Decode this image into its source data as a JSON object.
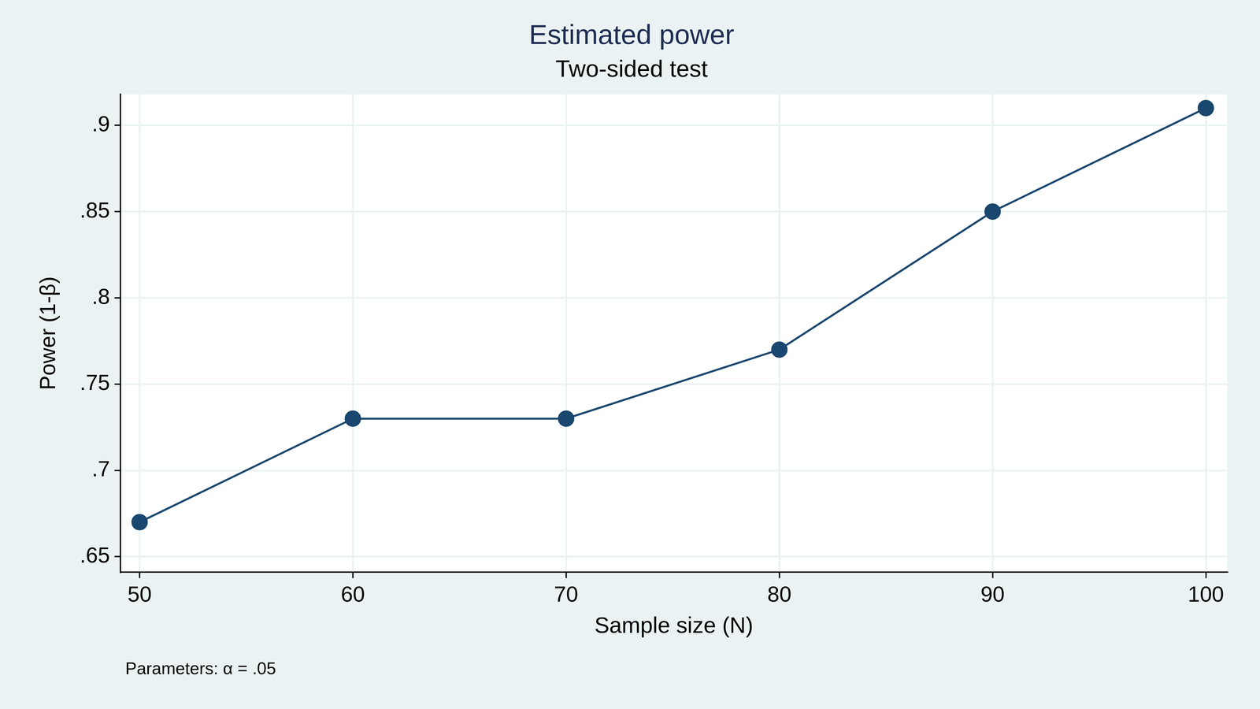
{
  "chart_data": {
    "type": "line",
    "title": "Estimated power",
    "subtitle": "Two-sided test",
    "x_label": "Sample size (N)",
    "y_label": "Power (1-β)",
    "note": "Parameters: α = .05",
    "x": [
      50,
      60,
      70,
      80,
      90,
      100
    ],
    "values": [
      0.67,
      0.73,
      0.73,
      0.77,
      0.85,
      0.91
    ],
    "color": "#1a476f",
    "marker": "circle",
    "line_style": "solid",
    "xlim": [
      49.1,
      101
    ],
    "xticks": [
      50,
      60,
      70,
      80,
      90,
      100
    ],
    "ylim": [
      0.641,
      0.918
    ],
    "yticks": [
      {
        "value": 0.65,
        "label": ".65"
      },
      {
        "value": 0.7,
        "label": ".7"
      },
      {
        "value": 0.75,
        "label": ".75"
      },
      {
        "value": 0.8,
        "label": ".8"
      },
      {
        "value": 0.85,
        "label": ".85"
      },
      {
        "value": 0.9,
        "label": ".9"
      }
    ],
    "grid": true
  }
}
